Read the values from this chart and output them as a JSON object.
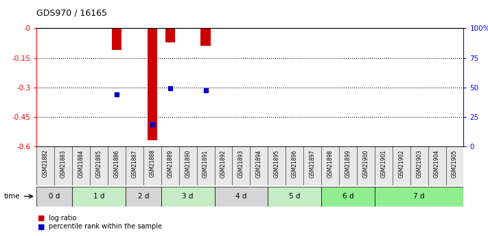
{
  "title": "GDS970 / 16165",
  "samples": [
    "GSM21882",
    "GSM21883",
    "GSM21884",
    "GSM21885",
    "GSM21886",
    "GSM21887",
    "GSM21888",
    "GSM21889",
    "GSM21890",
    "GSM21891",
    "GSM21892",
    "GSM21893",
    "GSM21894",
    "GSM21895",
    "GSM21896",
    "GSM21897",
    "GSM21898",
    "GSM21899",
    "GSM21900",
    "GSM21901",
    "GSM21902",
    "GSM21903",
    "GSM21904",
    "GSM21905"
  ],
  "log_ratio": [
    null,
    null,
    null,
    null,
    -0.11,
    null,
    -0.57,
    -0.07,
    null,
    -0.09,
    null,
    null,
    null,
    null,
    null,
    null,
    null,
    null,
    null,
    null,
    null,
    null,
    null,
    null
  ],
  "percentile_rank_val": [
    null,
    null,
    null,
    null,
    -0.335,
    null,
    -0.49,
    -0.305,
    null,
    -0.315,
    null,
    null,
    null,
    null,
    null,
    null,
    null,
    null,
    null,
    null,
    null,
    null,
    null,
    null
  ],
  "time_groups": [
    {
      "label": "0 d",
      "start": 0,
      "end": 2,
      "color": "#d5d5d5"
    },
    {
      "label": "1 d",
      "start": 2,
      "end": 5,
      "color": "#c5ecc5"
    },
    {
      "label": "2 d",
      "start": 5,
      "end": 7,
      "color": "#d5d5d5"
    },
    {
      "label": "3 d",
      "start": 7,
      "end": 10,
      "color": "#c5ecc5"
    },
    {
      "label": "4 d",
      "start": 10,
      "end": 13,
      "color": "#d5d5d5"
    },
    {
      "label": "5 d",
      "start": 13,
      "end": 16,
      "color": "#c5ecc5"
    },
    {
      "label": "6 d",
      "start": 16,
      "end": 19,
      "color": "#90ee90"
    },
    {
      "label": "7 d",
      "start": 19,
      "end": 24,
      "color": "#90ee90"
    }
  ],
  "ylim": [
    -0.6,
    0.0
  ],
  "yticks": [
    0,
    -0.15,
    -0.3,
    -0.45,
    -0.6
  ],
  "ytick_labels": [
    "-0",
    "-0.15",
    "-0.3",
    "-0.45",
    "-0.6"
  ],
  "right_ytick_positions": [
    0.0,
    0.25,
    0.5,
    0.75,
    1.0
  ],
  "right_ytick_labels": [
    "0",
    "25",
    "50",
    "75",
    "100%"
  ],
  "bar_color": "#cc0000",
  "percentile_color": "#0000cc",
  "fig_bg": "#ffffff"
}
